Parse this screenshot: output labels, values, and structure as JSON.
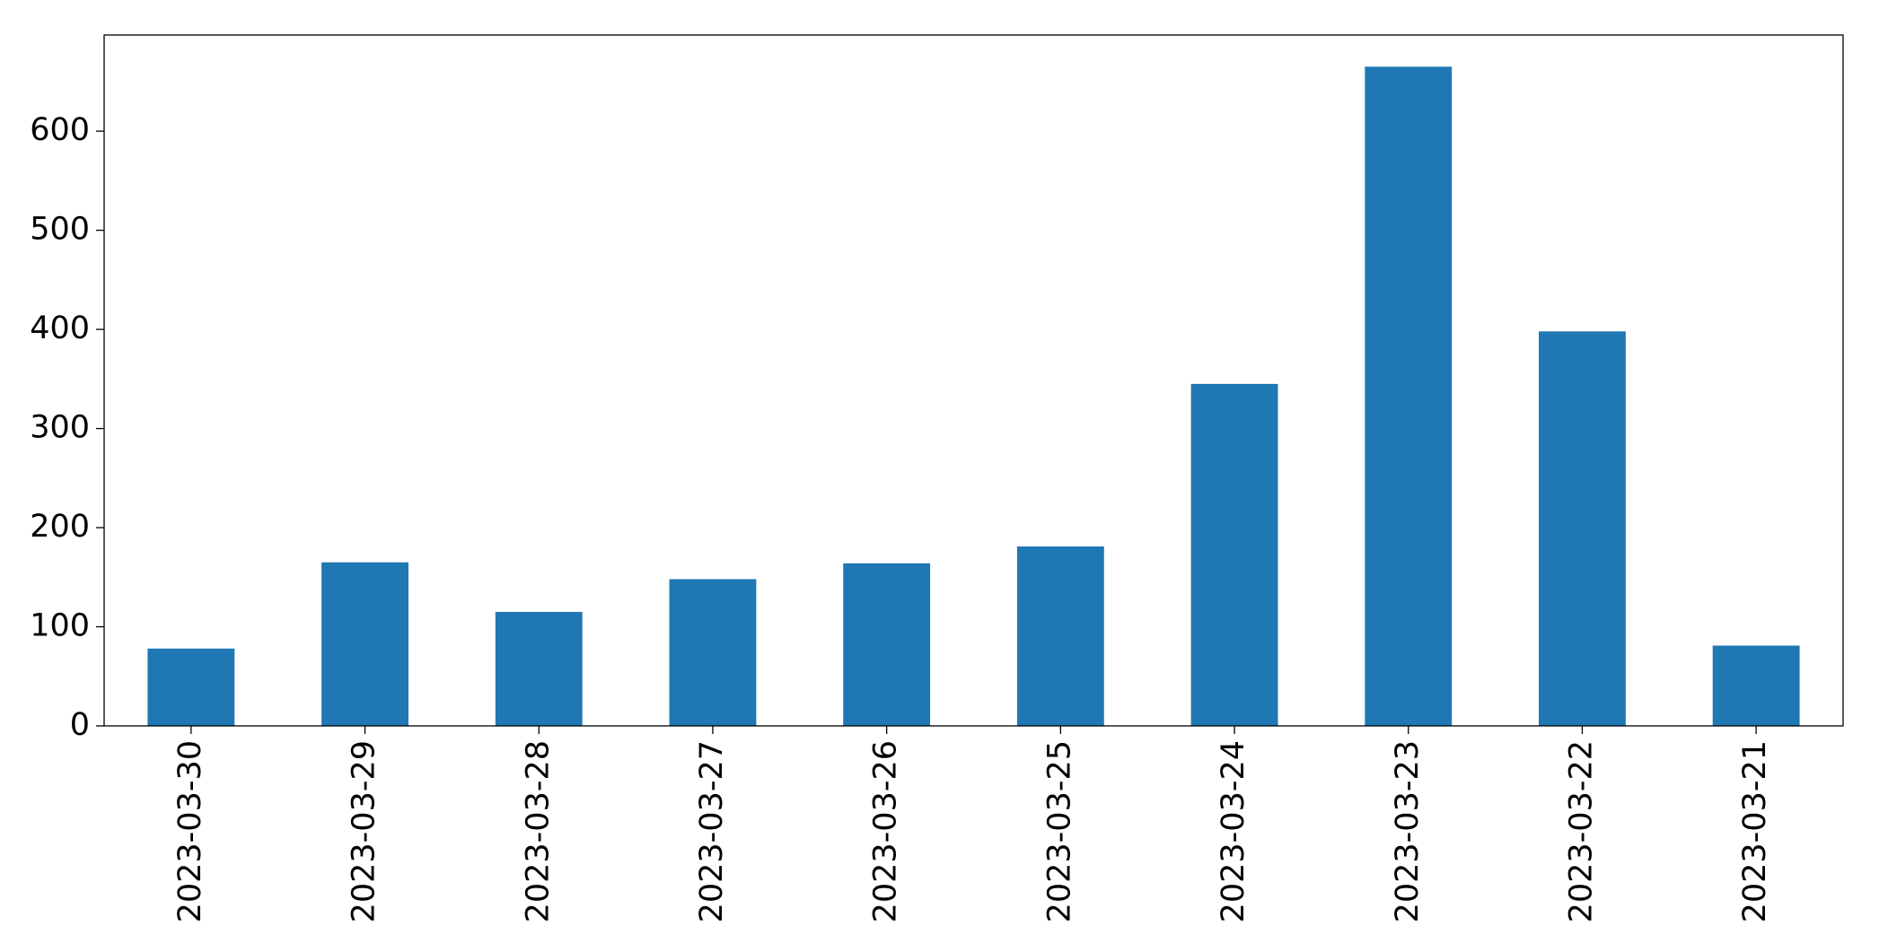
{
  "chart_data": {
    "type": "bar",
    "categories": [
      "2023-03-30",
      "2023-03-29",
      "2023-03-28",
      "2023-03-27",
      "2023-03-26",
      "2023-03-25",
      "2023-03-24",
      "2023-03-23",
      "2023-03-22",
      "2023-03-21"
    ],
    "values": [
      78,
      165,
      115,
      148,
      164,
      181,
      345,
      665,
      398,
      81
    ],
    "color": "#1f77b4",
    "ylim": [
      0,
      697
    ],
    "yticks": [
      0,
      100,
      200,
      300,
      400,
      500,
      600
    ],
    "grid": false
  }
}
